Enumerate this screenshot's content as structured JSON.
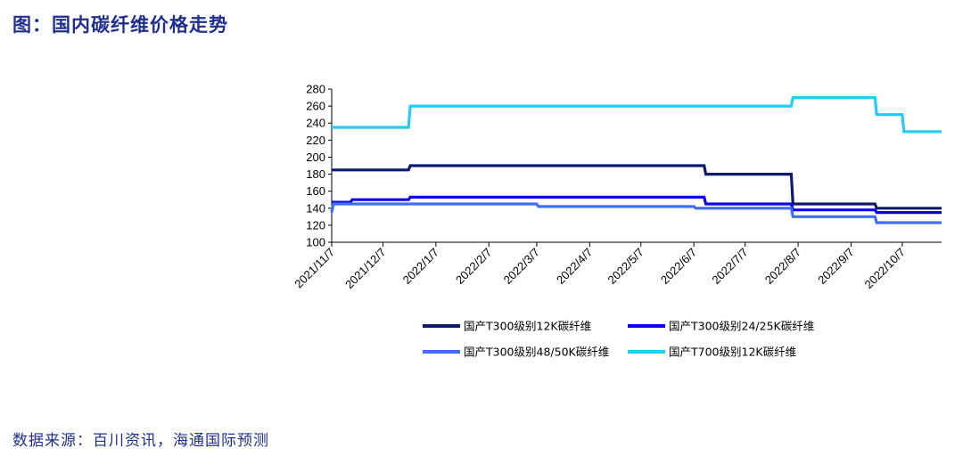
{
  "header": {
    "title": "图：国内碳纤维价格走势"
  },
  "footer": {
    "source": "数据来源：百川资讯，海通国际预测"
  },
  "chart_data": {
    "type": "line",
    "title": "",
    "xlabel": "",
    "ylabel": "",
    "ylim": [
      100,
      280
    ],
    "yticks": [
      100,
      120,
      140,
      160,
      180,
      200,
      220,
      240,
      260,
      280
    ],
    "xlim": [
      "2021-11-07",
      "2022-10-30"
    ],
    "xtick_labels": [
      "2021/11/7",
      "2021/12/7",
      "2022/1/7",
      "2022/2/7",
      "2022/3/7",
      "2022/4/7",
      "2022/5/7",
      "2022/6/7",
      "2022/7/7",
      "2022/8/7",
      "2022/9/7",
      "2022/10/7"
    ],
    "xtick_dates": [
      "2021-11-07",
      "2021-12-07",
      "2022-01-07",
      "2022-02-07",
      "2022-03-07",
      "2022-04-07",
      "2022-05-07",
      "2022-06-07",
      "2022-07-07",
      "2022-08-07",
      "2022-09-07",
      "2022-10-07"
    ],
    "grid": false,
    "legend_position": "bottom",
    "series": [
      {
        "name": "国产T300级别12K碳纤维",
        "color": "#0d1a6e",
        "points": [
          [
            "2021-11-07",
            185
          ],
          [
            "2021-12-22",
            185
          ],
          [
            "2021-12-23",
            190
          ],
          [
            "2022-06-13",
            190
          ],
          [
            "2022-06-14",
            180
          ],
          [
            "2022-08-03",
            180
          ],
          [
            "2022-08-04",
            145
          ],
          [
            "2022-09-21",
            145
          ],
          [
            "2022-09-22",
            140
          ],
          [
            "2022-10-30",
            140
          ]
        ]
      },
      {
        "name": "国产T300级别24/25K碳纤维",
        "color": "#0d00e6",
        "points": [
          [
            "2021-11-07",
            147
          ],
          [
            "2021-11-18",
            147
          ],
          [
            "2021-11-19",
            150
          ],
          [
            "2021-12-22",
            150
          ],
          [
            "2021-12-23",
            153
          ],
          [
            "2022-06-13",
            153
          ],
          [
            "2022-06-14",
            145
          ],
          [
            "2022-08-03",
            145
          ],
          [
            "2022-08-04",
            138
          ],
          [
            "2022-09-21",
            138
          ],
          [
            "2022-09-22",
            135
          ],
          [
            "2022-10-30",
            135
          ]
        ]
      },
      {
        "name": "国产T300级别48/50K碳纤维",
        "color": "#3f6ff0",
        "points": [
          [
            "2021-11-07",
            135
          ],
          [
            "2021-11-08",
            145
          ],
          [
            "2022-03-07",
            145
          ],
          [
            "2022-03-08",
            142
          ],
          [
            "2022-06-07",
            142
          ],
          [
            "2022-06-08",
            140
          ],
          [
            "2022-08-03",
            140
          ],
          [
            "2022-08-04",
            130
          ],
          [
            "2022-09-21",
            130
          ],
          [
            "2022-09-22",
            123
          ],
          [
            "2022-10-30",
            123
          ]
        ]
      },
      {
        "name": "国产T700级别12K碳纤维",
        "color": "#22ccf2",
        "points": [
          [
            "2021-11-07",
            235
          ],
          [
            "2021-12-22",
            235
          ],
          [
            "2021-12-23",
            260
          ],
          [
            "2022-08-03",
            260
          ],
          [
            "2022-08-04",
            270
          ],
          [
            "2022-09-21",
            270
          ],
          [
            "2022-09-22",
            250
          ],
          [
            "2022-10-07",
            250
          ],
          [
            "2022-10-08",
            230
          ],
          [
            "2022-10-30",
            230
          ]
        ]
      }
    ]
  }
}
